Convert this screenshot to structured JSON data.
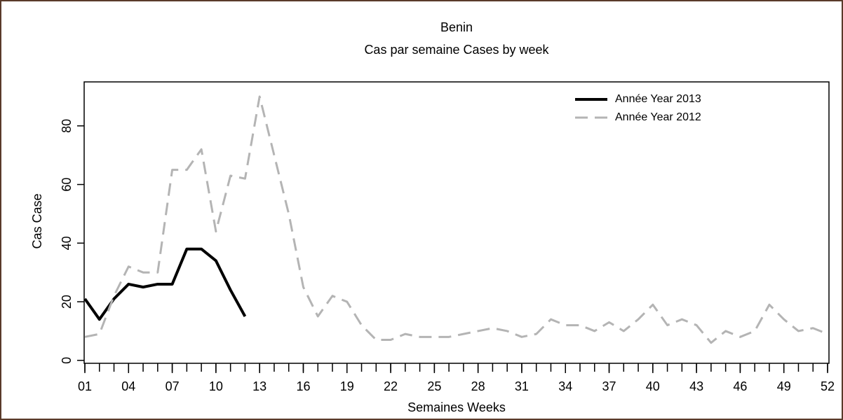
{
  "chart_data": {
    "type": "line",
    "title": "Benin",
    "subtitle": "Cas par semaine Cases by week",
    "x_label": "Semaines Weeks",
    "y_label": "Cas Case",
    "x": [
      1,
      2,
      3,
      4,
      5,
      6,
      7,
      8,
      9,
      10,
      11,
      12,
      13,
      14,
      15,
      16,
      17,
      18,
      19,
      20,
      21,
      22,
      23,
      24,
      25,
      26,
      27,
      28,
      29,
      30,
      31,
      32,
      33,
      34,
      35,
      36,
      37,
      38,
      39,
      40,
      41,
      42,
      43,
      44,
      45,
      46,
      47,
      48,
      49,
      50,
      51,
      52
    ],
    "series": [
      {
        "name": "Année Year 2013",
        "color": "#000000",
        "dash": false,
        "values": [
          21,
          14,
          21,
          26,
          25,
          26,
          26,
          38,
          38,
          34,
          24,
          15,
          null,
          null,
          null,
          null,
          null,
          null,
          null,
          null,
          null,
          null,
          null,
          null,
          null,
          null,
          null,
          null,
          null,
          null,
          null,
          null,
          null,
          null,
          null,
          null,
          null,
          null,
          null,
          null,
          null,
          null,
          null,
          null,
          null,
          null,
          null,
          null,
          null,
          null,
          null,
          null
        ]
      },
      {
        "name": "Année Year 2012",
        "color": "#b4b4b4",
        "dash": true,
        "values": [
          8,
          9,
          22,
          32,
          30,
          30,
          65,
          65,
          72,
          44,
          63,
          62,
          90,
          70,
          50,
          25,
          15,
          22,
          20,
          12,
          7,
          7,
          9,
          8,
          8,
          8,
          9,
          10,
          11,
          10,
          8,
          9,
          14,
          12,
          12,
          10,
          13,
          10,
          14,
          19,
          12,
          14,
          12,
          6,
          10,
          8,
          10,
          19,
          14,
          10,
          11,
          9
        ]
      }
    ],
    "xlim": [
      1,
      52
    ],
    "ylim": [
      -1,
      95
    ],
    "xticks": [
      {
        "value": 1,
        "label": "01"
      },
      {
        "value": 4,
        "label": "04"
      },
      {
        "value": 7,
        "label": "07"
      },
      {
        "value": 10,
        "label": "10"
      },
      {
        "value": 13,
        "label": "13"
      },
      {
        "value": 16,
        "label": "16"
      },
      {
        "value": 19,
        "label": "19"
      },
      {
        "value": 22,
        "label": "22"
      },
      {
        "value": 25,
        "label": "25"
      },
      {
        "value": 28,
        "label": "28"
      },
      {
        "value": 31,
        "label": "31"
      },
      {
        "value": 34,
        "label": "34"
      },
      {
        "value": 37,
        "label": "37"
      },
      {
        "value": 40,
        "label": "40"
      },
      {
        "value": 43,
        "label": "43"
      },
      {
        "value": 46,
        "label": "46"
      },
      {
        "value": 49,
        "label": "49"
      },
      {
        "value": 52,
        "label": "52"
      }
    ],
    "xminorticks": [
      1,
      2,
      3,
      4,
      5,
      6,
      7,
      8,
      9,
      10,
      11,
      12,
      13,
      14,
      15,
      16,
      17,
      18,
      19,
      20,
      21,
      22,
      23,
      24,
      25,
      26,
      27,
      28,
      29,
      30,
      31,
      32,
      33,
      34,
      35,
      36,
      37,
      38,
      39,
      40,
      41,
      42,
      43,
      44,
      45,
      46,
      47,
      48,
      49,
      50,
      51,
      52
    ],
    "yticks": [
      0,
      20,
      40,
      60,
      80
    ],
    "legend": "top-right",
    "grid": false
  }
}
